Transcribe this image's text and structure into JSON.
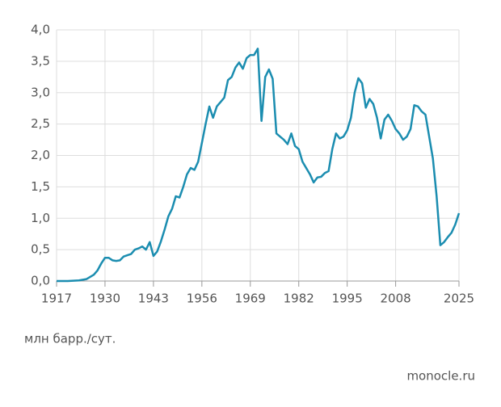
{
  "chart_data": {
    "type": "line",
    "x": [
      1917,
      1920,
      1923,
      1925,
      1927,
      1928,
      1929,
      1930,
      1931,
      1932,
      1933,
      1934,
      1935,
      1936,
      1937,
      1938,
      1939,
      1940,
      1941,
      1942,
      1943,
      1944,
      1945,
      1946,
      1947,
      1948,
      1949,
      1950,
      1951,
      1952,
      1953,
      1954,
      1955,
      1956,
      1957,
      1958,
      1959,
      1960,
      1961,
      1962,
      1963,
      1964,
      1965,
      1966,
      1967,
      1968,
      1969,
      1970,
      1971,
      1972,
      1973,
      1974,
      1975,
      1976,
      1977,
      1978,
      1979,
      1980,
      1981,
      1982,
      1983,
      1984,
      1985,
      1986,
      1987,
      1988,
      1989,
      1990,
      1991,
      1992,
      1993,
      1994,
      1995,
      1996,
      1997,
      1998,
      1999,
      2000,
      2001,
      2002,
      2003,
      2004,
      2005,
      2006,
      2007,
      2008,
      2009,
      2010,
      2011,
      2012,
      2013,
      2014,
      2015,
      2016,
      2017,
      2018,
      2019,
      2020,
      2021,
      2022,
      2023,
      2024,
      2025
    ],
    "series": [
      {
        "color": "#1b8db0",
        "values": [
          0,
          0,
          0.01,
          0.03,
          0.1,
          0.17,
          0.28,
          0.37,
          0.37,
          0.33,
          0.32,
          0.33,
          0.39,
          0.41,
          0.43,
          0.5,
          0.52,
          0.55,
          0.5,
          0.62,
          0.4,
          0.47,
          0.63,
          0.82,
          1.03,
          1.15,
          1.35,
          1.33,
          1.5,
          1.7,
          1.8,
          1.77,
          1.9,
          2.2,
          2.5,
          2.78,
          2.6,
          2.78,
          2.85,
          2.92,
          3.2,
          3.25,
          3.4,
          3.48,
          3.38,
          3.55,
          3.6,
          3.6,
          3.7,
          2.55,
          3.25,
          3.37,
          3.22,
          2.35,
          2.3,
          2.25,
          2.18,
          2.35,
          2.15,
          2.1,
          1.9,
          1.8,
          1.7,
          1.57,
          1.65,
          1.66,
          1.72,
          1.75,
          2.1,
          2.35,
          2.27,
          2.3,
          2.4,
          2.6,
          3.0,
          3.23,
          3.15,
          2.76,
          2.9,
          2.82,
          2.6,
          2.27,
          2.57,
          2.65,
          2.55,
          2.42,
          2.35,
          2.25,
          2.3,
          2.42,
          2.8,
          2.78,
          2.7,
          2.65,
          2.3,
          1.95,
          1.35,
          0.57,
          0.62,
          0.7,
          0.77,
          0.9,
          1.08
        ]
      }
    ],
    "xlim": [
      1917,
      2025
    ],
    "xticks": [
      1917,
      1930,
      1943,
      1956,
      1969,
      1982,
      1995,
      2008,
      2025
    ],
    "ylim": [
      0,
      4
    ],
    "yticks": [
      {
        "value": 0,
        "label": "0,0"
      },
      {
        "value": 0.5,
        "label": "0,5"
      },
      {
        "value": 1,
        "label": "1,0"
      },
      {
        "value": 1.5,
        "label": "1,5"
      },
      {
        "value": 2,
        "label": "2,0"
      },
      {
        "value": 2.5,
        "label": "2,5"
      },
      {
        "value": 3,
        "label": "3,0"
      },
      {
        "value": 3.5,
        "label": "3,5"
      },
      {
        "value": 4,
        "label": "4,0"
      }
    ],
    "grid": true,
    "y_label": "млн барр./сут.",
    "source": "monocle.ru"
  }
}
